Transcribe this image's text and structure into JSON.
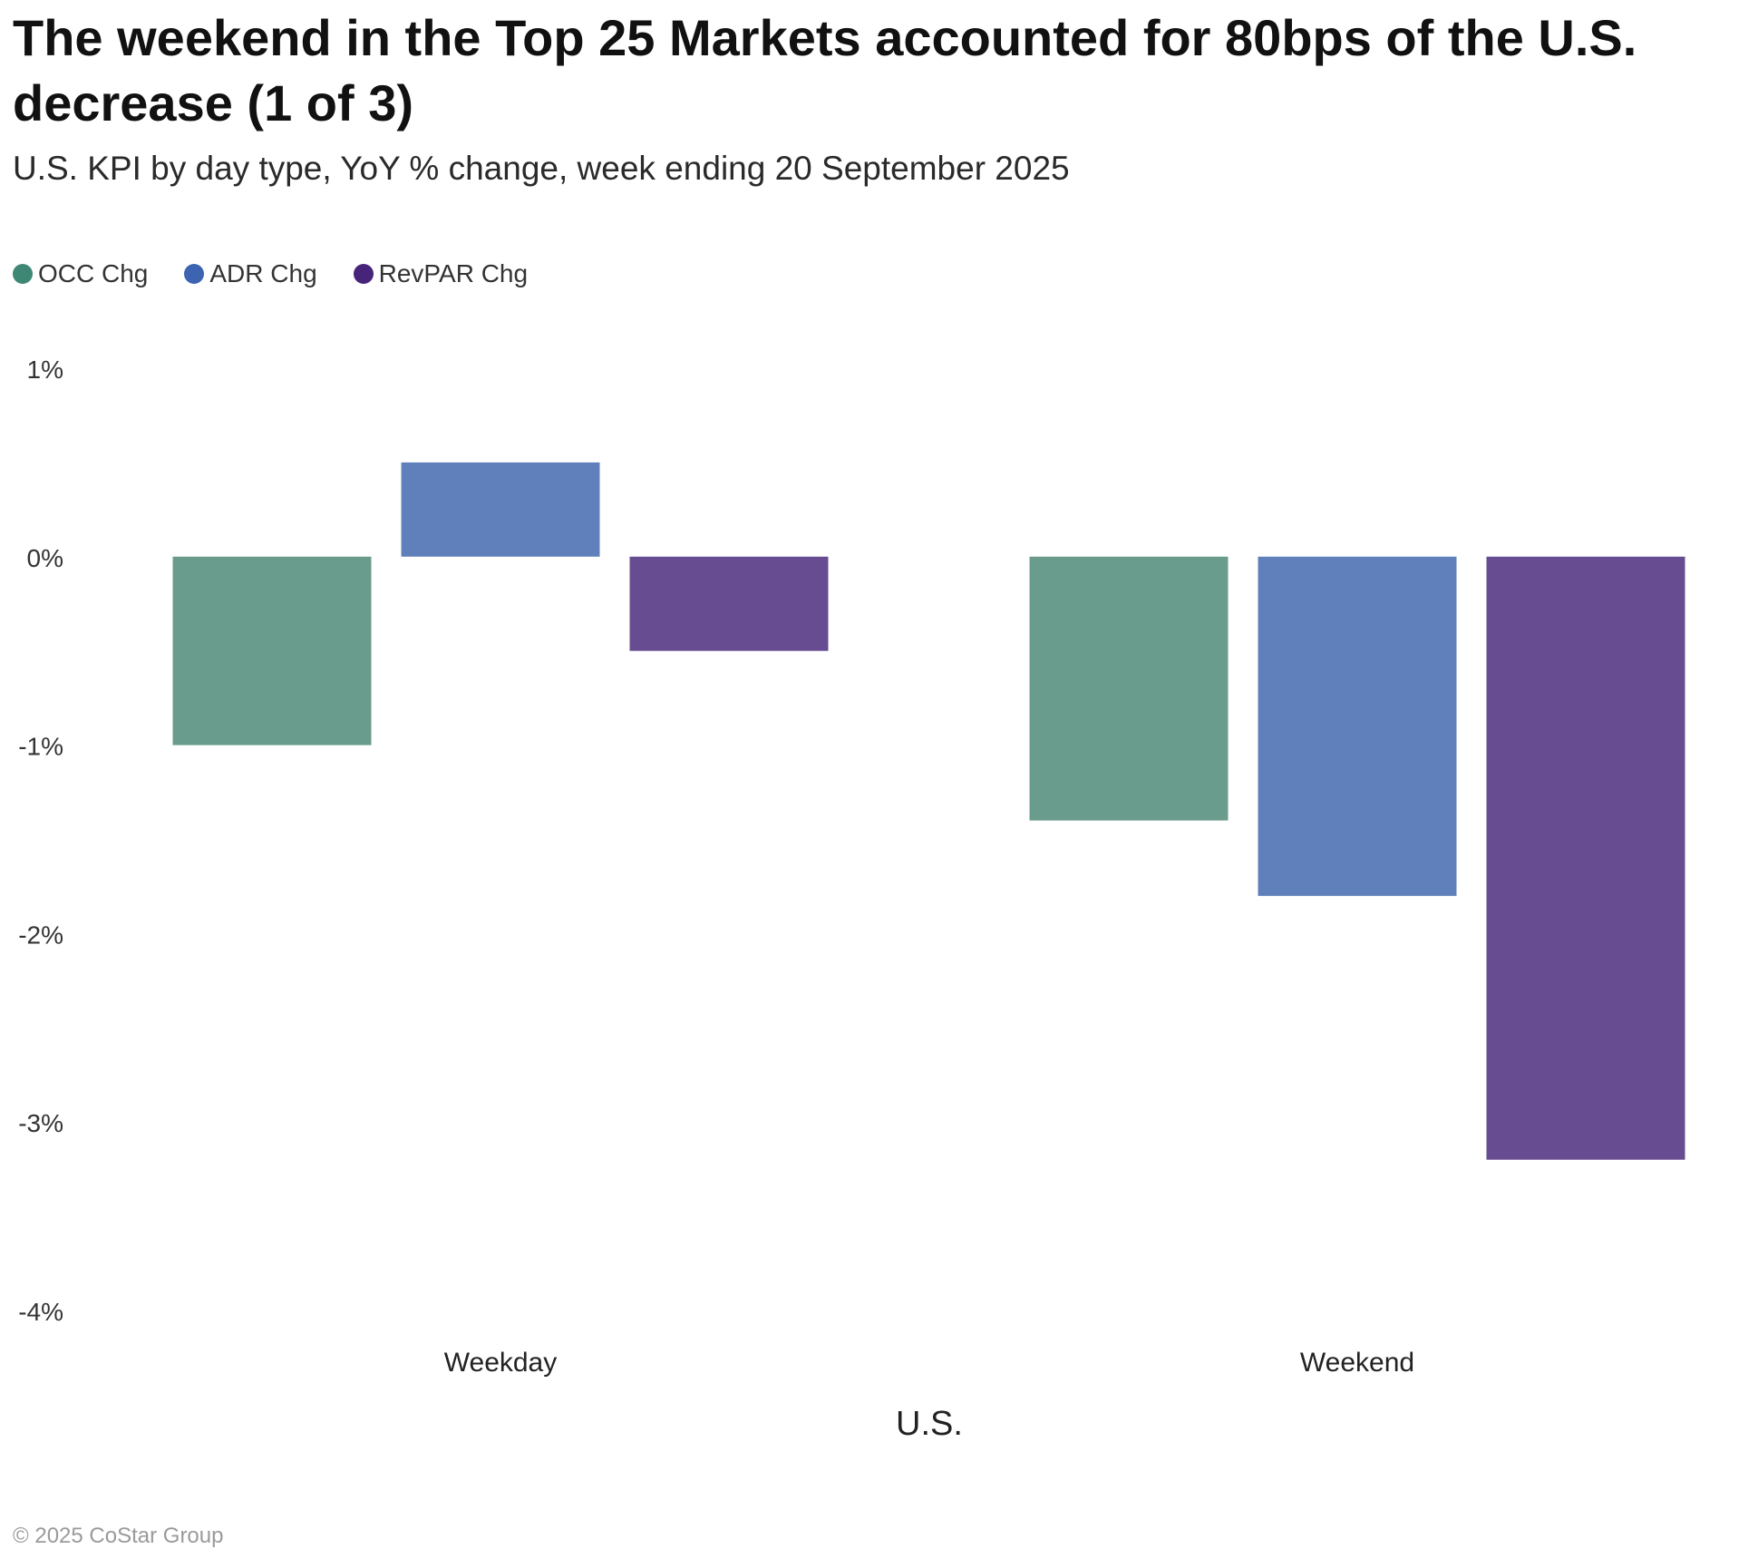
{
  "header": {
    "title": "The weekend in the Top 25 Markets accounted for 80bps of the U.S. decrease (1 of 3)",
    "subtitle": "U.S. KPI by day type, YoY % change, week ending 20 September 2025"
  },
  "legend": {
    "items": [
      {
        "label": "OCC Chg",
        "color": "#3f8775"
      },
      {
        "label": "ADR Chg",
        "color": "#3d64b0"
      },
      {
        "label": "RevPAR Chg",
        "color": "#472479"
      }
    ]
  },
  "footer": {
    "copyright": "© 2025 CoStar Group"
  },
  "chart_data": {
    "type": "bar",
    "title": "The weekend in the Top 25 Markets accounted for 80bps of the U.S. decrease (1 of 3)",
    "subtitle": "U.S. KPI by day type, YoY % change, week ending 20 September 2025",
    "xlabel": "U.S.",
    "ylabel": "",
    "categories": [
      "Weekday",
      "Weekend"
    ],
    "series": [
      {
        "name": "OCC Chg",
        "values": [
          -1.0,
          -1.4
        ],
        "color": "#6a9c8e"
      },
      {
        "name": "ADR Chg",
        "values": [
          0.5,
          -1.8
        ],
        "color": "#5f80bb"
      },
      {
        "name": "RevPAR Chg",
        "values": [
          -0.5,
          -3.2
        ],
        "color": "#674c91"
      }
    ],
    "ylim": [
      -4,
      1
    ],
    "yticks": [
      1,
      0,
      -1,
      -2,
      -3,
      -4
    ],
    "ytick_labels": [
      "1%",
      "0%",
      "-1%",
      "-2%",
      "-3%",
      "-4%"
    ],
    "grid": false,
    "legend_position": "top-left"
  }
}
